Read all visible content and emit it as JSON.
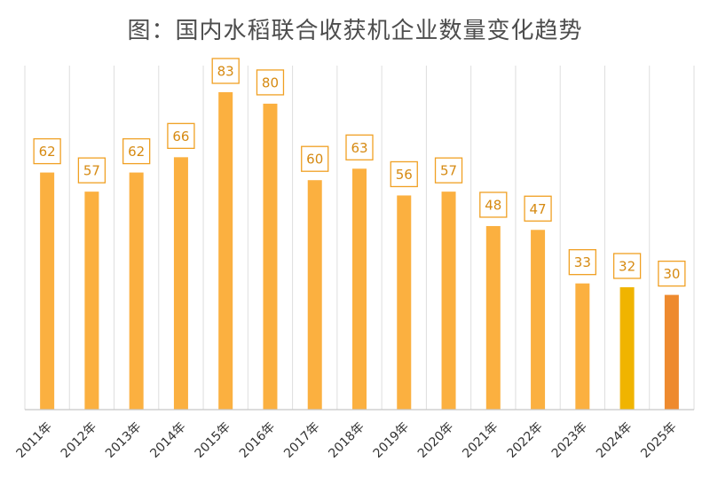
{
  "chart_data": {
    "type": "bar",
    "title": "图：国内水稻联合收获机企业数量变化趋势",
    "categories": [
      "2011年",
      "2012年",
      "2013年",
      "2014年",
      "2015年",
      "2016年",
      "2017年",
      "2018年",
      "2019年",
      "2020年",
      "2021年",
      "2022年",
      "2023年",
      "2024年",
      "2025年"
    ],
    "values": [
      62,
      57,
      62,
      66,
      83,
      80,
      60,
      63,
      56,
      57,
      48,
      47,
      33,
      32,
      30
    ],
    "bar_colors": [
      "#fbb040",
      "#fbb040",
      "#fbb040",
      "#fbb040",
      "#fbb040",
      "#fbb040",
      "#fbb040",
      "#fbb040",
      "#fbb040",
      "#fbb040",
      "#fbb040",
      "#fbb040",
      "#fbb040",
      "#f0b400",
      "#ee8a2e"
    ],
    "ylim": [
      0,
      88
    ],
    "grid": true,
    "legend": "none"
  }
}
